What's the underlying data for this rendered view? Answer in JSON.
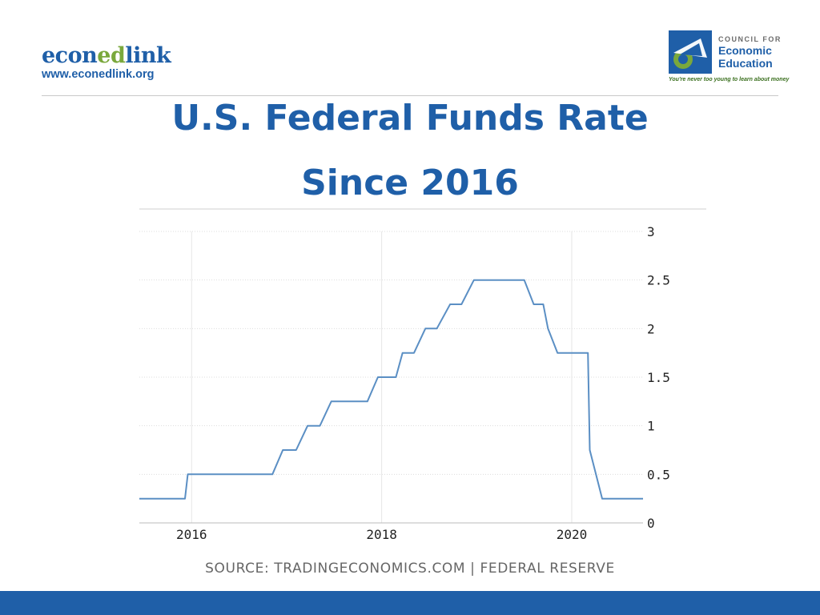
{
  "header": {
    "econedlink_part1": "econ",
    "econedlink_part2": "ed",
    "econedlink_part3": "link",
    "econedlink_url": "www.econedlink.org",
    "cee_line1": "COUNCIL FOR",
    "cee_line2": "Economic",
    "cee_line3": "Education",
    "cee_tagline": "You're never too young to learn about money"
  },
  "title_line1": "U.S. Federal Funds Rate",
  "title_line2": "Since 2016",
  "source": "SOURCE: TRADINGECONOMICS.COM | FEDERAL RESERVE",
  "colors": {
    "brand_blue": "#1f5fa8",
    "brand_green": "#7aa83c",
    "line": "#5b8fc4",
    "grid": "#dddddd"
  },
  "chart_data": {
    "type": "line",
    "title": "U.S. Federal Funds Rate",
    "subtitle": "Since 2016",
    "xlabel": "",
    "ylabel": "",
    "x_tick_labels": [
      "2016",
      "2018",
      "2020"
    ],
    "x_ticks": [
      2016,
      2018,
      2020
    ],
    "y_tick_labels": [
      "0",
      "0.5",
      "1",
      "1.5",
      "2",
      "2.5",
      "3"
    ],
    "y_ticks": [
      0,
      0.5,
      1,
      1.5,
      2,
      2.5,
      3
    ],
    "xlim": [
      2015.45,
      2020.75
    ],
    "ylim": [
      0,
      3
    ],
    "y_axis_side": "right",
    "grid": true,
    "series": [
      {
        "x": [
          2015.45,
          2015.93,
          2015.96,
          2016.85,
          2016.96,
          2017.1,
          2017.22,
          2017.35,
          2017.47,
          2017.85,
          2017.96,
          2018.15,
          2018.22,
          2018.34,
          2018.46,
          2018.58,
          2018.72,
          2018.84,
          2018.97,
          2019.5,
          2019.6,
          2019.7,
          2019.75,
          2019.85,
          2020.17,
          2020.19,
          2020.32,
          2020.75
        ],
        "y": [
          0.25,
          0.25,
          0.5,
          0.5,
          0.75,
          0.75,
          1.0,
          1.0,
          1.25,
          1.25,
          1.5,
          1.5,
          1.75,
          1.75,
          2.0,
          2.0,
          2.25,
          2.25,
          2.5,
          2.5,
          2.25,
          2.25,
          2.0,
          1.75,
          1.75,
          0.75,
          0.25,
          0.25
        ]
      }
    ]
  }
}
